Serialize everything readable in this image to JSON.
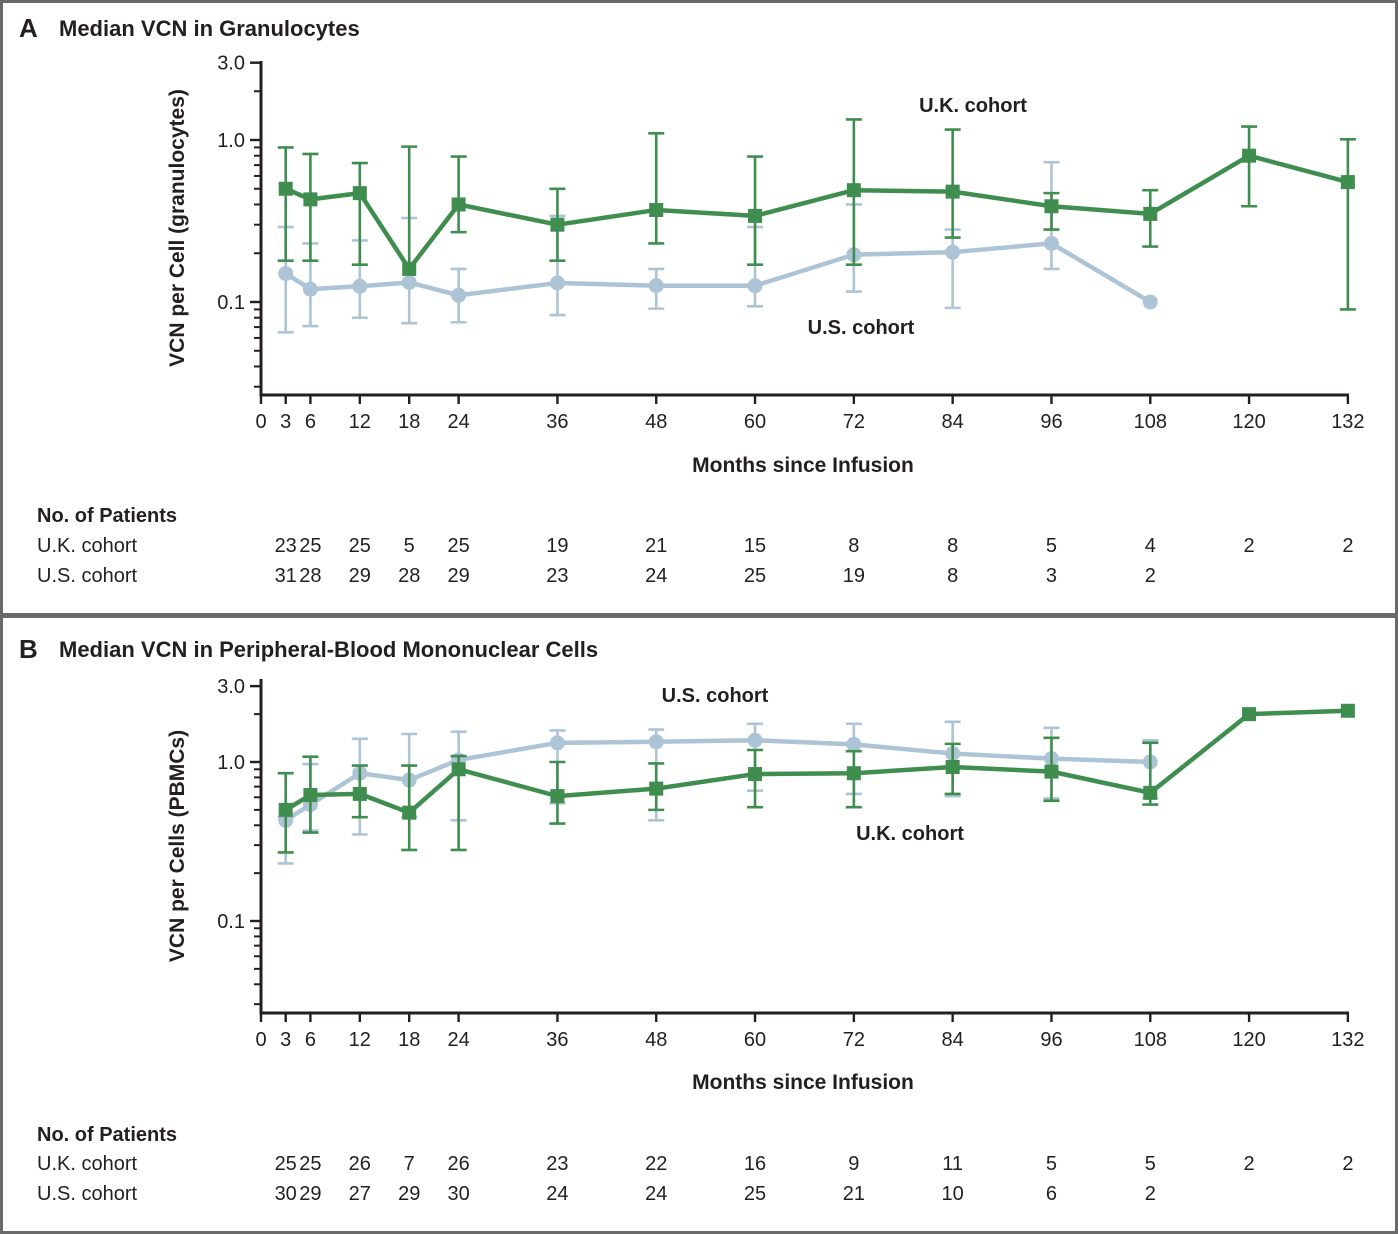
{
  "figure": {
    "background": "#ffffff",
    "border_color": "#6a6a6a",
    "separator_color": "#6a6a6a",
    "text_color": "#231f20"
  },
  "colors": {
    "uk_green": "#3f8d4f",
    "us_blue": "#adc3d6",
    "axis": "#231f20"
  },
  "panel_a": {
    "letter": "A",
    "title": "Median VCN in Granulocytes",
    "y_axis_label": "VCN per Cell (granulocytes)",
    "x_axis_label": "Months since Infusion",
    "uk_label": "U.K. cohort",
    "us_label": "U.S. cohort",
    "patients_header": "No. of Patients",
    "patients_rows": [
      {
        "label": "U.K. cohort",
        "values": [
          "23",
          "25",
          "25",
          "5",
          "25",
          "19",
          "21",
          "15",
          "8",
          "8",
          "5",
          "4",
          "2",
          "2"
        ]
      },
      {
        "label": "U.S. cohort",
        "values": [
          "31",
          "28",
          "29",
          "28",
          "29",
          "23",
          "24",
          "25",
          "19",
          "8",
          "3",
          "2",
          "",
          ""
        ]
      }
    ]
  },
  "panel_b": {
    "letter": "B",
    "title": "Median VCN in Peripheral-Blood Mononuclear Cells",
    "y_axis_label": "VCN per Cells (PBMCs)",
    "x_axis_label": "Months since Infusion",
    "uk_label": "U.K. cohort",
    "us_label": "U.S. cohort",
    "patients_header": "No. of Patients",
    "patients_rows": [
      {
        "label": "U.K. cohort",
        "values": [
          "25",
          "25",
          "26",
          "7",
          "26",
          "23",
          "22",
          "16",
          "9",
          "11",
          "5",
          "5",
          "2",
          "2"
        ]
      },
      {
        "label": "U.S. cohort",
        "values": [
          "30",
          "29",
          "27",
          "29",
          "30",
          "24",
          "24",
          "25",
          "21",
          "10",
          "6",
          "2",
          "",
          ""
        ]
      }
    ]
  },
  "chart_data": [
    {
      "type": "line",
      "title": "Median VCN in Granulocytes",
      "xlabel": "Months since Infusion",
      "ylabel": "VCN per Cell (granulocytes)",
      "y_scale": "log",
      "ylim": [
        0.027,
        3.0
      ],
      "y_ticks": [
        3.0,
        1.0,
        0.1
      ],
      "x_ticks": [
        0,
        3,
        6,
        12,
        18,
        24,
        36,
        48,
        60,
        72,
        84,
        96,
        108,
        120,
        132
      ],
      "x": [
        3,
        6,
        12,
        18,
        24,
        36,
        48,
        60,
        72,
        84,
        96,
        108,
        120,
        132
      ],
      "legend_position": "inline-labels",
      "grid": false,
      "series": [
        {
          "name": "U.S. cohort",
          "marker": "circle",
          "color": "#adc3d6",
          "median": [
            0.15,
            0.12,
            0.125,
            0.132,
            0.11,
            0.131,
            0.126,
            0.126,
            0.196,
            0.203,
            0.23,
            0.1,
            null,
            null
          ],
          "lo": [
            0.065,
            0.071,
            0.08,
            0.074,
            0.075,
            0.083,
            0.091,
            0.094,
            0.116,
            0.092,
            0.16,
            null,
            null,
            null
          ],
          "hi": [
            0.29,
            0.23,
            0.24,
            0.33,
            0.16,
            0.34,
            0.16,
            0.29,
            0.4,
            0.28,
            0.73,
            null,
            null,
            null
          ]
        },
        {
          "name": "U.K. cohort",
          "marker": "square",
          "color": "#3f8d4f",
          "median": [
            0.5,
            0.43,
            0.47,
            0.16,
            0.4,
            0.3,
            0.37,
            0.34,
            0.49,
            0.48,
            0.39,
            0.35,
            0.8,
            0.55
          ],
          "lo": [
            0.18,
            0.18,
            0.17,
            null,
            0.27,
            0.18,
            0.23,
            0.17,
            0.17,
            0.25,
            0.28,
            0.22,
            0.39,
            0.09
          ],
          "hi": [
            0.9,
            0.82,
            0.72,
            0.91,
            0.79,
            0.5,
            1.1,
            0.79,
            1.34,
            1.16,
            0.47,
            0.49,
            1.21,
            1.01
          ]
        }
      ]
    },
    {
      "type": "line",
      "title": "Median VCN in Peripheral-Blood Mononuclear Cells",
      "xlabel": "Months since Infusion",
      "ylabel": "VCN per Cells (PBMCs)",
      "y_scale": "log",
      "ylim": [
        0.026,
        3.0
      ],
      "y_ticks": [
        3.0,
        1.0,
        0.1
      ],
      "x_ticks": [
        0,
        3,
        6,
        12,
        18,
        24,
        36,
        48,
        60,
        72,
        84,
        96,
        108,
        120,
        132
      ],
      "x": [
        3,
        6,
        12,
        18,
        24,
        36,
        48,
        60,
        72,
        84,
        96,
        108,
        120,
        132
      ],
      "legend_position": "inline-labels",
      "grid": false,
      "series": [
        {
          "name": "U.S. cohort",
          "marker": "circle",
          "color": "#adc3d6",
          "median": [
            0.43,
            0.54,
            0.85,
            0.77,
            1.03,
            1.32,
            1.34,
            1.37,
            1.29,
            1.13,
            1.05,
            1.0,
            null,
            null
          ],
          "lo": [
            0.23,
            0.37,
            0.35,
            0.45,
            0.43,
            0.55,
            0.43,
            0.66,
            0.63,
            0.61,
            0.59,
            0.59,
            null,
            null
          ],
          "hi": [
            0.45,
            0.97,
            1.4,
            1.5,
            1.55,
            1.58,
            1.6,
            1.74,
            1.74,
            1.79,
            1.64,
            1.37,
            null,
            null
          ]
        },
        {
          "name": "U.K. cohort",
          "marker": "square",
          "color": "#3f8d4f",
          "median": [
            0.5,
            0.62,
            0.63,
            0.48,
            0.9,
            0.61,
            0.68,
            0.84,
            0.85,
            0.93,
            0.87,
            0.64,
            2.0,
            2.1
          ],
          "lo": [
            0.27,
            0.36,
            0.45,
            0.28,
            0.28,
            0.41,
            0.5,
            0.52,
            0.52,
            0.63,
            0.57,
            0.54,
            null,
            null
          ],
          "hi": [
            0.85,
            1.08,
            0.95,
            0.95,
            1.09,
            1.0,
            0.98,
            1.19,
            1.17,
            1.3,
            1.42,
            1.32,
            null,
            null
          ]
        }
      ]
    }
  ]
}
